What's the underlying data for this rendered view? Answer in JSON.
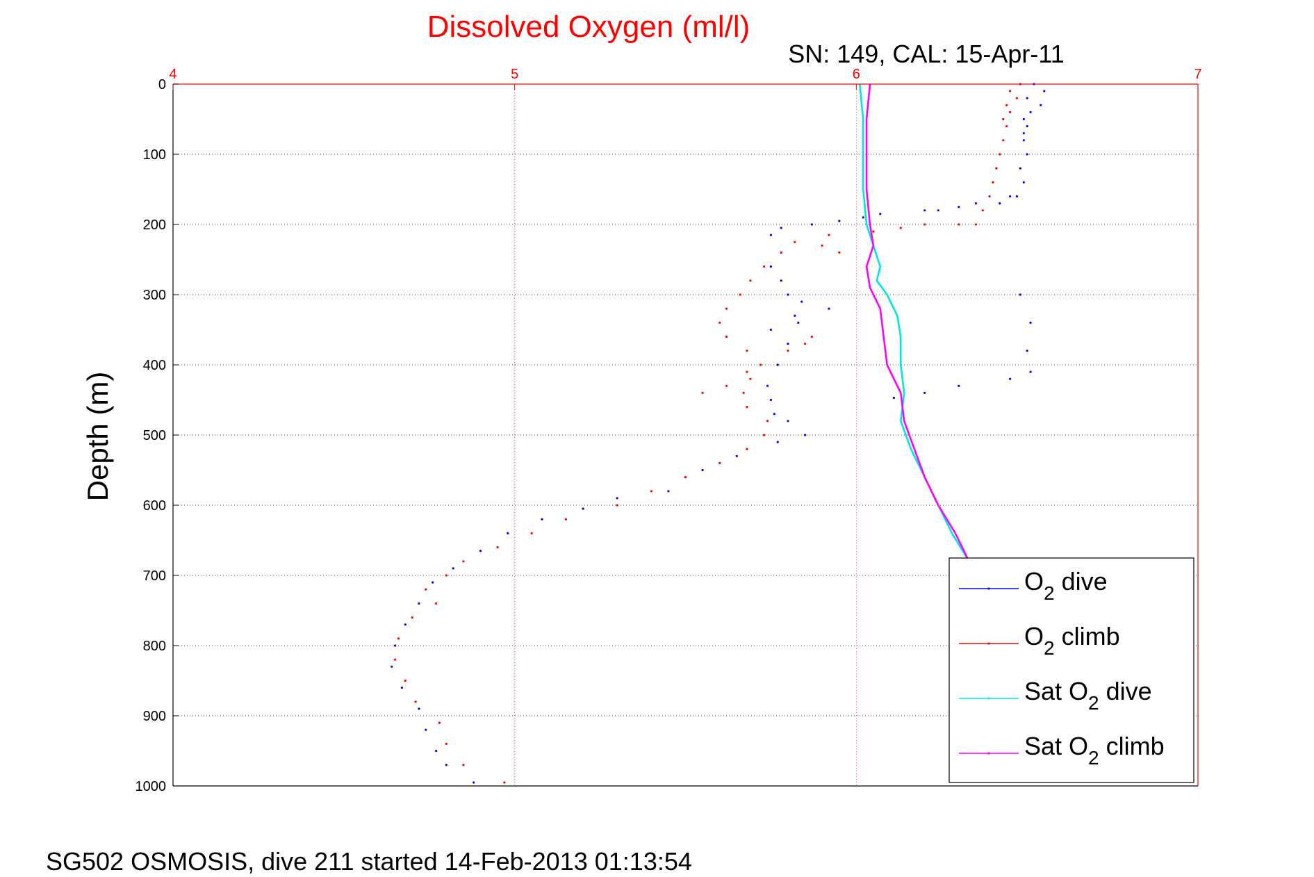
{
  "chart_data": {
    "type": "scatter",
    "title": "Dissolved Oxygen (ml/l)",
    "subtitle": "SN: 149, CAL: 15-Apr-11",
    "ylabel": "Depth (m)",
    "xlabel": "",
    "footer": "SG502 OSMOSIS, dive 211 started 14-Feb-2013 01:13:54",
    "xlim": [
      4,
      7
    ],
    "ylim": [
      0,
      1000
    ],
    "y_reversed": true,
    "x_ticks": [
      "4",
      "5",
      "6",
      "7"
    ],
    "y_ticks": [
      "0",
      "100",
      "200",
      "300",
      "400",
      "500",
      "600",
      "700",
      "800",
      "900",
      "1000"
    ],
    "grid": true,
    "legend_position": "bottom-right",
    "legend": [
      {
        "prefix": "O",
        "sub": "2",
        "suffix": " dive"
      },
      {
        "prefix": "O",
        "sub": "2",
        "suffix": " climb"
      },
      {
        "prefix": "Sat O",
        "sub": "2",
        "suffix": " dive"
      },
      {
        "prefix": "Sat O",
        "sub": "2",
        "suffix": " climb"
      }
    ],
    "colors": {
      "title": "#ff0000",
      "top_axis": "#ff0000",
      "o2_dive": "#0000ff",
      "o2_climb": "#ff0000",
      "sat_dive": "#00e5e5",
      "sat_climb": "#ff00ff"
    },
    "series": [
      {
        "key": "o2_dive",
        "style": "dots",
        "points": [
          [
            6.52,
            0
          ],
          [
            6.55,
            10
          ],
          [
            6.5,
            20
          ],
          [
            6.54,
            30
          ],
          [
            6.51,
            40
          ],
          [
            6.49,
            50
          ],
          [
            6.5,
            60
          ],
          [
            6.49,
            70
          ],
          [
            6.49,
            80
          ],
          [
            6.5,
            100
          ],
          [
            6.48,
            120
          ],
          [
            6.49,
            140
          ],
          [
            6.47,
            160
          ],
          [
            6.42,
            170
          ],
          [
            6.3,
            175
          ],
          [
            6.2,
            180
          ],
          [
            6.07,
            185
          ],
          [
            6.02,
            190
          ],
          [
            5.95,
            195
          ],
          [
            5.87,
            200
          ],
          [
            5.78,
            205
          ],
          [
            5.75,
            215
          ],
          [
            5.78,
            240
          ],
          [
            5.75,
            260
          ],
          [
            5.78,
            280
          ],
          [
            5.8,
            300
          ],
          [
            5.84,
            310
          ],
          [
            5.92,
            320
          ],
          [
            5.82,
            330
          ],
          [
            5.83,
            340
          ],
          [
            5.75,
            350
          ],
          [
            5.8,
            370
          ],
          [
            5.77,
            400
          ],
          [
            5.74,
            430
          ],
          [
            5.75,
            450
          ],
          [
            5.76,
            470
          ],
          [
            5.8,
            480
          ],
          [
            5.85,
            500
          ],
          [
            5.77,
            510
          ],
          [
            5.65,
            530
          ],
          [
            5.55,
            550
          ],
          [
            5.5,
            560
          ],
          [
            5.45,
            580
          ],
          [
            5.3,
            590
          ],
          [
            5.2,
            605
          ],
          [
            5.08,
            620
          ],
          [
            4.98,
            640
          ],
          [
            4.9,
            665
          ],
          [
            4.82,
            690
          ],
          [
            4.76,
            710
          ],
          [
            4.72,
            740
          ],
          [
            4.68,
            770
          ],
          [
            4.65,
            800
          ],
          [
            4.64,
            830
          ],
          [
            4.67,
            860
          ],
          [
            4.72,
            890
          ],
          [
            4.74,
            920
          ],
          [
            4.77,
            950
          ],
          [
            4.8,
            970
          ],
          [
            4.88,
            995
          ]
        ]
      },
      {
        "key": "o2_dive",
        "style": "dots",
        "points": [
          [
            6.24,
            180
          ],
          [
            6.35,
            170
          ],
          [
            6.45,
            160
          ],
          [
            6.48,
            300
          ],
          [
            6.51,
            340
          ],
          [
            6.5,
            380
          ],
          [
            6.51,
            410
          ],
          [
            6.45,
            420
          ],
          [
            6.3,
            430
          ],
          [
            6.2,
            440
          ],
          [
            6.11,
            447
          ]
        ]
      },
      {
        "key": "o2_climb",
        "style": "dots",
        "points": [
          [
            6.48,
            0
          ],
          [
            6.45,
            10
          ],
          [
            6.47,
            20
          ],
          [
            6.44,
            30
          ],
          [
            6.45,
            40
          ],
          [
            6.43,
            50
          ],
          [
            6.44,
            60
          ],
          [
            6.43,
            80
          ],
          [
            6.42,
            100
          ],
          [
            6.41,
            120
          ],
          [
            6.4,
            140
          ],
          [
            6.39,
            160
          ],
          [
            6.37,
            180
          ],
          [
            6.35,
            200
          ],
          [
            6.3,
            200
          ],
          [
            6.2,
            200
          ],
          [
            6.13,
            205
          ],
          [
            6.05,
            210
          ],
          [
            5.92,
            215
          ],
          [
            5.82,
            225
          ],
          [
            5.78,
            240
          ],
          [
            5.73,
            260
          ],
          [
            5.69,
            280
          ],
          [
            5.66,
            300
          ],
          [
            5.62,
            320
          ],
          [
            5.6,
            340
          ],
          [
            5.62,
            360
          ],
          [
            5.68,
            380
          ],
          [
            5.72,
            400
          ],
          [
            5.69,
            420
          ],
          [
            5.67,
            440
          ],
          [
            5.68,
            460
          ],
          [
            5.74,
            480
          ],
          [
            5.73,
            500
          ],
          [
            5.68,
            520
          ],
          [
            5.6,
            540
          ],
          [
            5.5,
            560
          ],
          [
            5.4,
            580
          ],
          [
            5.3,
            600
          ],
          [
            5.15,
            620
          ],
          [
            5.05,
            640
          ],
          [
            4.95,
            660
          ],
          [
            4.85,
            680
          ],
          [
            4.8,
            700
          ],
          [
            4.74,
            720
          ],
          [
            4.77,
            740
          ],
          [
            4.7,
            760
          ],
          [
            4.66,
            790
          ],
          [
            4.65,
            820
          ],
          [
            4.68,
            850
          ],
          [
            4.71,
            880
          ],
          [
            4.78,
            910
          ],
          [
            4.8,
            940
          ],
          [
            4.85,
            970
          ],
          [
            4.97,
            995
          ]
        ]
      },
      {
        "key": "o2_climb",
        "style": "dots",
        "points": [
          [
            5.55,
            440
          ],
          [
            5.62,
            430
          ],
          [
            5.68,
            410
          ],
          [
            5.8,
            380
          ],
          [
            5.85,
            370
          ],
          [
            5.87,
            360
          ],
          [
            5.9,
            230
          ],
          [
            5.95,
            240
          ]
        ]
      },
      {
        "key": "sat_dive",
        "style": "line",
        "points": [
          [
            6.01,
            0
          ],
          [
            6.02,
            50
          ],
          [
            6.02,
            100
          ],
          [
            6.02,
            150
          ],
          [
            6.03,
            200
          ],
          [
            6.05,
            230
          ],
          [
            6.07,
            260
          ],
          [
            6.06,
            280
          ],
          [
            6.09,
            300
          ],
          [
            6.12,
            330
          ],
          [
            6.13,
            360
          ],
          [
            6.13,
            400
          ],
          [
            6.14,
            440
          ],
          [
            6.13,
            480
          ],
          [
            6.16,
            520
          ],
          [
            6.2,
            560
          ],
          [
            6.24,
            600
          ],
          [
            6.28,
            640
          ],
          [
            6.33,
            680
          ],
          [
            6.37,
            720
          ],
          [
            6.42,
            760
          ],
          [
            6.46,
            800
          ],
          [
            6.5,
            840
          ],
          [
            6.53,
            880
          ],
          [
            6.56,
            920
          ],
          [
            6.59,
            960
          ],
          [
            6.61,
            995
          ]
        ]
      },
      {
        "key": "sat_climb",
        "style": "line",
        "points": [
          [
            6.04,
            0
          ],
          [
            6.03,
            50
          ],
          [
            6.03,
            100
          ],
          [
            6.03,
            150
          ],
          [
            6.04,
            200
          ],
          [
            6.05,
            230
          ],
          [
            6.03,
            260
          ],
          [
            6.04,
            290
          ],
          [
            6.07,
            320
          ],
          [
            6.08,
            360
          ],
          [
            6.09,
            400
          ],
          [
            6.13,
            440
          ],
          [
            6.14,
            480
          ],
          [
            6.17,
            520
          ],
          [
            6.2,
            560
          ],
          [
            6.24,
            600
          ],
          [
            6.29,
            640
          ],
          [
            6.33,
            680
          ],
          [
            6.37,
            720
          ],
          [
            6.42,
            760
          ],
          [
            6.46,
            800
          ],
          [
            6.5,
            840
          ],
          [
            6.53,
            880
          ],
          [
            6.56,
            920
          ],
          [
            6.59,
            960
          ],
          [
            6.61,
            995
          ]
        ]
      }
    ]
  }
}
